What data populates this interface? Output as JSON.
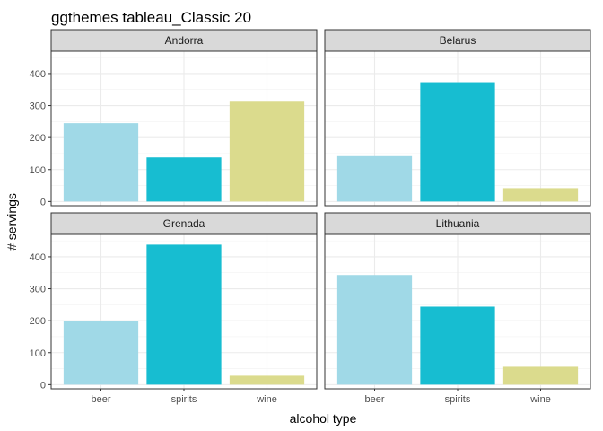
{
  "chart_data": {
    "type": "bar",
    "title": "ggthemes tableau_Classic 20",
    "xlabel": "alcohol type",
    "ylabel": "# servings",
    "ylim": [
      -13,
      470
    ],
    "yticks": [
      0,
      100,
      200,
      300,
      400
    ],
    "grid": true,
    "categories": [
      "beer",
      "spirits",
      "wine"
    ],
    "category_colors": [
      "#A0D9E7",
      "#17BDD1",
      "#DBDB8D"
    ],
    "facets": [
      {
        "name": "Andorra",
        "values": [
          245,
          138,
          312
        ]
      },
      {
        "name": "Belarus",
        "values": [
          142,
          373,
          42
        ]
      },
      {
        "name": "Grenada",
        "values": [
          199,
          438,
          28
        ]
      },
      {
        "name": "Lithuania",
        "values": [
          343,
          244,
          56
        ]
      }
    ]
  }
}
